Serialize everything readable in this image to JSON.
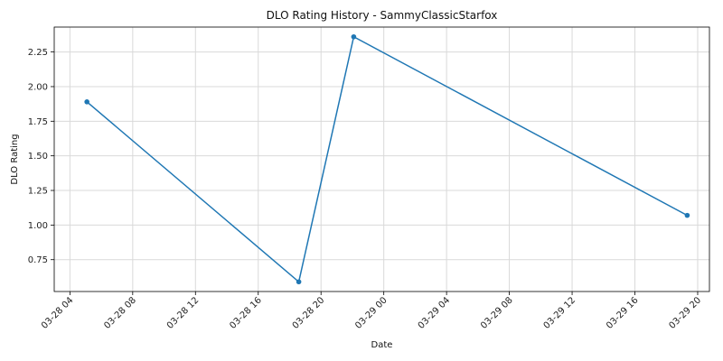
{
  "chart_data": {
    "type": "line",
    "title": "DLO Rating History - SammyClassicStarfox",
    "xlabel": "Date",
    "ylabel": "DLO Rating",
    "x_type": "datetime",
    "x_ticks": [
      "2024-03-28T04:00",
      "2024-03-28T08:00",
      "2024-03-28T12:00",
      "2024-03-28T16:00",
      "2024-03-28T20:00",
      "2024-03-29T00:00",
      "2024-03-29T04:00",
      "2024-03-29T08:00",
      "2024-03-29T12:00",
      "2024-03-29T16:00",
      "2024-03-29T20:00"
    ],
    "x_tick_labels": [
      "03-28 04",
      "03-28 08",
      "03-28 12",
      "03-28 16",
      "03-28 20",
      "03-29 00",
      "03-29 04",
      "03-29 08",
      "03-29 12",
      "03-29 16",
      "03-29 20"
    ],
    "y_ticks": [
      0.75,
      1.0,
      1.25,
      1.5,
      1.75,
      2.0,
      2.25
    ],
    "y_tick_labels": [
      "0.75",
      "1.00",
      "1.25",
      "1.50",
      "1.75",
      "2.00",
      "2.25"
    ],
    "xlim": [
      "2024-03-28T03:00",
      "2024-03-29T20:45"
    ],
    "ylim": [
      0.52,
      2.43
    ],
    "grid": true,
    "series": [
      {
        "color": "#1f77b4",
        "points": [
          {
            "x": "2024-03-28T05:05",
            "y": 1.89
          },
          {
            "x": "2024-03-28T18:35",
            "y": 0.59
          },
          {
            "x": "2024-03-28T22:05",
            "y": 2.36
          },
          {
            "x": "2024-03-29T19:20",
            "y": 1.07
          }
        ]
      }
    ]
  }
}
